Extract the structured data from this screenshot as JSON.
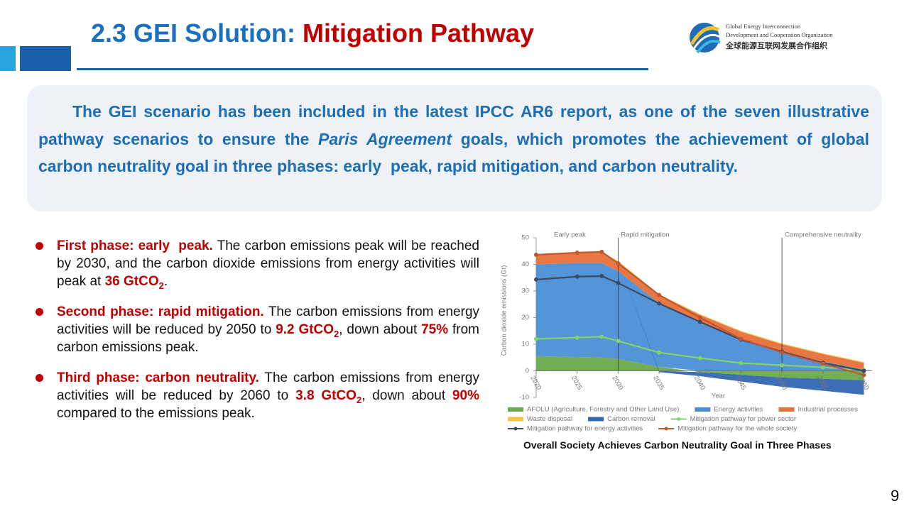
{
  "slide": {
    "title": [
      "2.3 GEI Solution: ",
      "Mitigation Pathway"
    ],
    "logo": [
      "Global Energy Interconnection",
      "Development and Cooperation Organization",
      "全球能源互联网发展合作组织"
    ],
    "intro": [
      "The GEI scenario has been included in the latest IPCC AR6 report, as one of the seven illustrative pathway scenarios to ensure the ",
      "Paris Agreement",
      " goals, which promotes the achievement of global carbon neutrality goal in three phases: early  peak, rapid mitigation, and carbon neutrality."
    ],
    "bullets": [
      [
        "First phase: early  peak.",
        " The carbon emissions peak will be reached by 2030, and the carbon dioxide emissions from energy activities will peak at ",
        "36 GtCO",
        "2",
        "."
      ],
      [
        "Second phase: rapid mitigation.",
        " The carbon emissions from energy activities will be reduced by 2050 to ",
        "9.2 GtCO",
        "2",
        ", down about ",
        "75%",
        " from carbon emissions peak."
      ],
      [
        "Third phase: carbon neutrality.",
        " The carbon emissions from energy activities will be reduced by 2060 to ",
        "3.8 GtCO",
        "2",
        ", down about ",
        "90%",
        " compared to the emissions peak."
      ]
    ],
    "caption": "Overall Society Achieves Carbon Neutrality Goal in Three Phases",
    "page": "9"
  },
  "chart_data": {
    "type": "area",
    "x_label": "Year",
    "y_label": "Carbon dioxide emissions (Gt)",
    "phases": [
      "Early peak",
      "Rapid mitigation",
      "Comprehensive neutrality"
    ],
    "phase_boundaries": [
      2030,
      2050
    ],
    "x": [
      2020,
      2025,
      2028,
      2030,
      2035,
      2040,
      2045,
      2050,
      2055,
      2060
    ],
    "xlim": [
      2020,
      2061
    ],
    "xticks": [
      2020,
      2025,
      2030,
      2035,
      2040,
      2045,
      2050,
      2055,
      2060
    ],
    "ylim": [
      -10,
      50
    ],
    "yticks": [
      -10,
      0,
      10,
      20,
      30,
      40,
      50
    ],
    "series": [
      {
        "name": "AFOLU (Agriculture, Forestry and Other Land Use)",
        "kind": "area",
        "color": "#6aaa4a",
        "values": [
          5.5,
          5.2,
          5,
          4.5,
          1.5,
          -0.5,
          -1.5,
          -2.5,
          -3,
          -3.5
        ]
      },
      {
        "name": "Energy activities",
        "kind": "area",
        "color": "#4a8fd4",
        "values": [
          34.5,
          35.3,
          35.5,
          33,
          24,
          18,
          11.5,
          7,
          3.5,
          0.5
        ]
      },
      {
        "name": "Industrial processes",
        "kind": "area",
        "color": "#e8703a",
        "values": [
          3.5,
          3.7,
          3.8,
          3.5,
          3,
          3,
          3.2,
          3,
          2.8,
          2.5
        ]
      },
      {
        "name": "Waste disposal",
        "kind": "area",
        "color": "#f5c342",
        "values": [
          0.3,
          0.3,
          0.3,
          0.3,
          0.3,
          0.3,
          0.3,
          0.3,
          0.3,
          0.3
        ]
      },
      {
        "name": "Carbon removal",
        "kind": "area",
        "color": "#3566b3",
        "values": [
          0,
          0,
          0,
          0,
          -0.5,
          -1.5,
          -2.5,
          -3.5,
          -4.5,
          -5.5
        ]
      },
      {
        "name": "Mitigation pathway for power sector",
        "kind": "line",
        "color": "#7ed36a",
        "values": [
          12,
          12.5,
          12.8,
          11.2,
          6.9,
          4.8,
          2.9,
          2.1,
          1.3,
          0.3
        ]
      },
      {
        "name": "Mitigation pathway for energy activities",
        "kind": "line",
        "color": "#3d4a66",
        "values": [
          34.3,
          35.4,
          35.6,
          33,
          25.3,
          18.4,
          11.7,
          7.2,
          3,
          0
        ]
      },
      {
        "name": "Mitigation pathway for the whole society",
        "kind": "line",
        "color": "#c0582f",
        "values": [
          43.6,
          44.4,
          44.7,
          40.4,
          28.5,
          20,
          12,
          6.9,
          2.7,
          -1.6
        ]
      }
    ]
  }
}
